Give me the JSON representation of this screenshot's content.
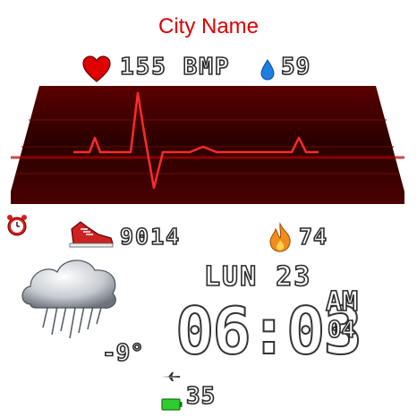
{
  "city": "City Name",
  "heart_rate": {
    "value": "155",
    "unit": "BMP"
  },
  "spo2": "59",
  "steps": "9014",
  "calories": "74",
  "weather": {
    "temperature": "-9°"
  },
  "date": "LUN 23",
  "time": {
    "hm": "06:03",
    "ampm": "AM",
    "seconds": "04"
  },
  "battery": "35",
  "colors": {
    "accent": "#d90000",
    "ecg_bg": "#3a0000",
    "ecg_line": "#ff2a2a"
  }
}
